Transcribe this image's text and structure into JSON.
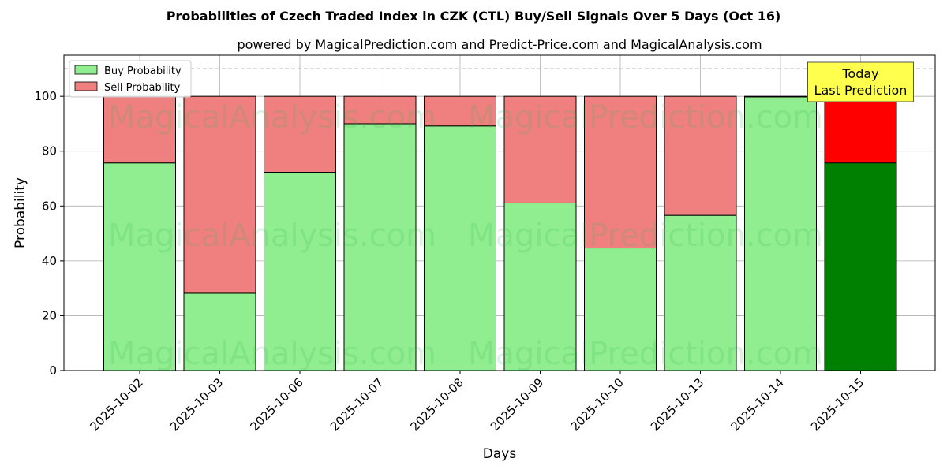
{
  "chart_data": {
    "type": "bar",
    "title": "Probabilities of Czech Traded Index in CZK (CTL) Buy/Sell Signals Over 5 Days (Oct 16)",
    "subtitle": "powered by MagicalPrediction.com and Predict-Price.com and MagicalAnalysis.com",
    "xlabel": "Days",
    "ylabel": "Probability",
    "ylim": [
      0,
      115
    ],
    "yticks": [
      0,
      20,
      40,
      60,
      80,
      100
    ],
    "grid": true,
    "stacked": true,
    "legend_position": "top-left",
    "categories": [
      "2025-10-02",
      "2025-10-03",
      "2025-10-06",
      "2025-10-07",
      "2025-10-08",
      "2025-10-09",
      "2025-10-10",
      "2025-10-13",
      "2025-10-14",
      "2025-10-15"
    ],
    "series": [
      {
        "name": "Buy Probability",
        "color": "#90ee90",
        "highlight_color": "#008000",
        "values": [
          75.7,
          28.2,
          72.3,
          90.0,
          89.2,
          61.1,
          44.7,
          56.6,
          99.8,
          75.7
        ]
      },
      {
        "name": "Sell Probability",
        "color": "#f08080",
        "highlight_color": "#ff0000",
        "values": [
          24.3,
          71.8,
          27.7,
          10.0,
          10.8,
          38.9,
          55.3,
          43.4,
          0.2,
          24.3
        ]
      }
    ],
    "highlight_index": 9,
    "reference_line": {
      "y": 110,
      "style": "dashed",
      "color": "#808080"
    },
    "annotation": {
      "lines": [
        "Today",
        "Last Prediction"
      ],
      "background": "#ffff4d"
    },
    "watermarks": [
      "MagicalAnalysis.com",
      "MagicalPrediction.com"
    ]
  }
}
